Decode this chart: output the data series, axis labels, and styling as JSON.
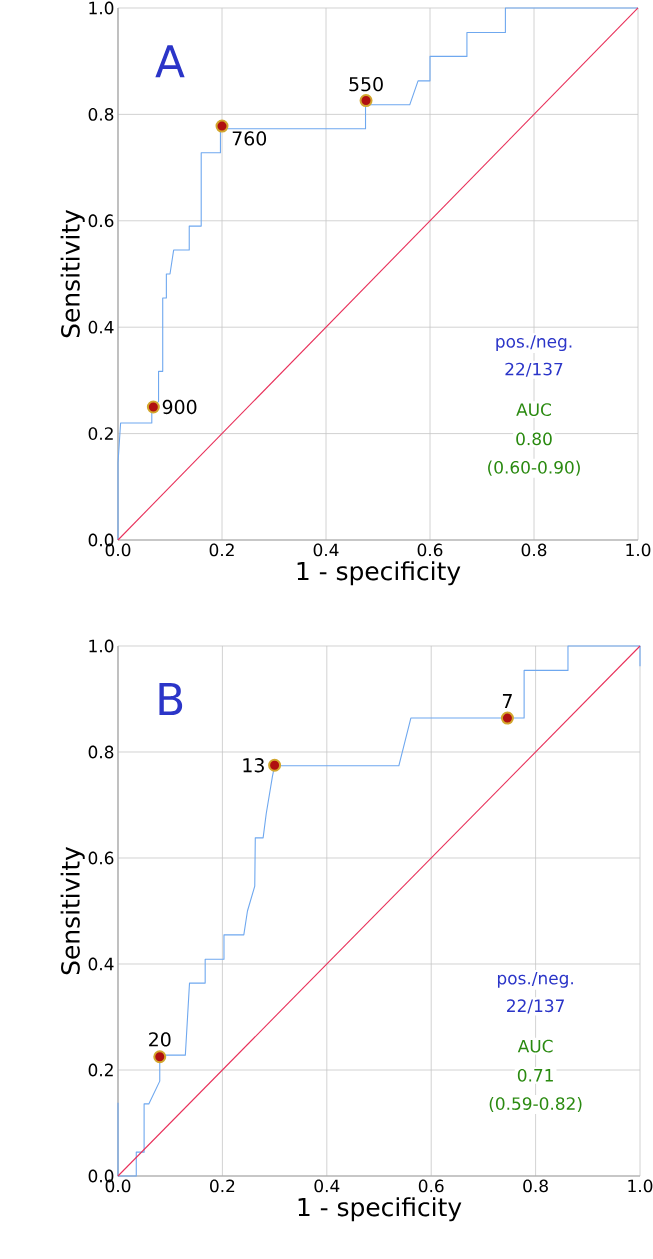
{
  "chart_data": [
    {
      "type": "line",
      "xlabel": "1 - specificity",
      "ylabel": "Sensitivity",
      "xlim": [
        0,
        1
      ],
      "ylim": [
        0,
        1
      ],
      "grid": true,
      "xticks": [
        {
          "value": 0,
          "label": "0.0"
        },
        {
          "value": 0.2,
          "label": "0.2"
        },
        {
          "value": 0.4,
          "label": "0.4"
        },
        {
          "value": 0.6,
          "label": "0.6"
        },
        {
          "value": 0.8,
          "label": "0.8"
        },
        {
          "value": 1,
          "label": "1.0"
        }
      ],
      "yticks": [
        {
          "value": 0,
          "label": "0.0"
        },
        {
          "value": 0.2,
          "label": "0.2"
        },
        {
          "value": 0.4,
          "label": "0.4"
        },
        {
          "value": 0.6,
          "label": "0.6"
        },
        {
          "value": 0.8,
          "label": "0.8"
        },
        {
          "value": 1,
          "label": "1.0"
        }
      ],
      "series": [
        {
          "type": "line",
          "color": "#6fa8ef",
          "x": [
            0,
            0,
            0.005,
            0.065,
            0.065,
            0.078,
            0.078,
            0.086,
            0.086,
            0.093,
            0.093,
            0.1,
            0.107,
            0.137,
            0.137,
            0.16,
            0.16,
            0.197,
            0.197,
            0.476,
            0.476,
            0.561,
            0.577,
            0.6,
            0.6,
            0.671,
            0.671,
            0.745,
            0.745,
            1
          ],
          "values": [
            0,
            0.145,
            0.22,
            0.22,
            0.25,
            0.26,
            0.317,
            0.317,
            0.455,
            0.455,
            0.5,
            0.5,
            0.545,
            0.545,
            0.59,
            0.59,
            0.728,
            0.728,
            0.773,
            0.773,
            0.818,
            0.818,
            0.863,
            0.863,
            0.909,
            0.909,
            0.954,
            0.954,
            1,
            1
          ]
        },
        {
          "type": "line",
          "color": "#e8305a",
          "x": [
            0,
            1
          ],
          "values": [
            0,
            1
          ]
        },
        {
          "type": "scatter",
          "marker": "circle",
          "color": "#b01010",
          "x": [
            0.068,
            0.2,
            0.477
          ],
          "values": [
            0.25,
            0.778,
            0.826
          ]
        }
      ],
      "annotations": [
        "A",
        "pos./neg.",
        "22/137",
        "AUC",
        "0.80",
        "(0.60-0.90)",
        {
          "text": "900",
          "x": 0.068,
          "y": 0.25
        },
        {
          "text": "760",
          "x": 0.2,
          "y": 0.778
        },
        {
          "text": "550",
          "x": 0.477,
          "y": 0.826
        }
      ]
    },
    {
      "type": "line",
      "xlabel": "1 - specificity",
      "ylabel": "Sensitivity",
      "xlim": [
        0,
        1
      ],
      "ylim": [
        0,
        1
      ],
      "grid": true,
      "xticks": [
        {
          "value": 0,
          "label": "0.0"
        },
        {
          "value": 0.2,
          "label": "0.2"
        },
        {
          "value": 0.4,
          "label": "0.4"
        },
        {
          "value": 0.6,
          "label": "0.6"
        },
        {
          "value": 0.8,
          "label": "0.8"
        },
        {
          "value": 1,
          "label": "1.0"
        }
      ],
      "yticks": [
        {
          "value": 0,
          "label": "0.0"
        },
        {
          "value": 0.2,
          "label": "0.2"
        },
        {
          "value": 0.4,
          "label": "0.4"
        },
        {
          "value": 0.6,
          "label": "0.6"
        },
        {
          "value": 0.8,
          "label": "0.8"
        },
        {
          "value": 1,
          "label": "1.0"
        }
      ],
      "series": [
        {
          "type": "line",
          "color": "#6fa8ef",
          "x": [
            0,
            0,
            0,
            0.035,
            0.035,
            0.05,
            0.05,
            0.059,
            0.08,
            0.08,
            0.129,
            0.137,
            0.167,
            0.167,
            0.203,
            0.203,
            0.241,
            0.248,
            0.262,
            0.263,
            0.278,
            0.284,
            0.296,
            0.3,
            0.538,
            0.561,
            0.778,
            0.778,
            0.862,
            0.862,
            1,
            1
          ],
          "values": [
            0.138,
            0,
            0,
            0,
            0.045,
            0.045,
            0.136,
            0.136,
            0.179,
            0.228,
            0.228,
            0.364,
            0.364,
            0.409,
            0.409,
            0.455,
            0.455,
            0.5,
            0.547,
            0.638,
            0.638,
            0.684,
            0.755,
            0.774,
            0.774,
            0.864,
            0.864,
            0.954,
            0.954,
            1,
            1,
            0.962
          ]
        },
        {
          "type": "line",
          "color": "#e8305a",
          "x": [
            0,
            1
          ],
          "values": [
            0,
            1
          ]
        },
        {
          "type": "scatter",
          "marker": "circle",
          "color": "#b01010",
          "x": [
            0.08,
            0.3,
            0.746
          ],
          "values": [
            0.225,
            0.775,
            0.864
          ]
        }
      ],
      "annotations": [
        "B",
        "pos./neg.",
        "22/137",
        "AUC",
        "0.71",
        "(0.59-0.82)",
        {
          "text": "20",
          "x": 0.08,
          "y": 0.225
        },
        {
          "text": "13",
          "x": 0.3,
          "y": 0.775
        },
        {
          "text": "7",
          "x": 0.746,
          "y": 0.864
        }
      ]
    }
  ]
}
